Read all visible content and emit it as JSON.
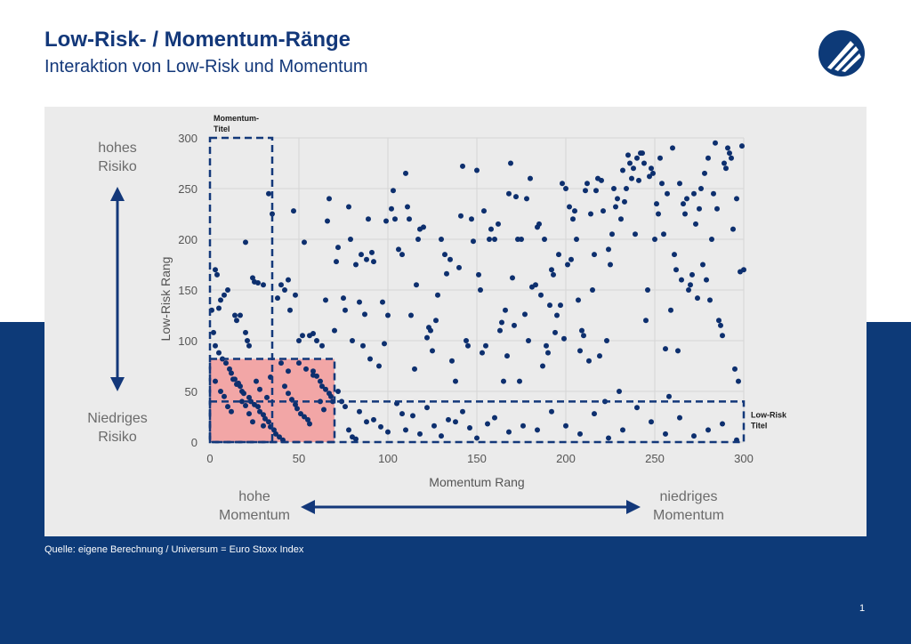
{
  "header": {
    "title": "Low-Risk- / Momentum-Ränge",
    "subtitle": "Interaktion von Low-Risk und Momentum"
  },
  "side_labels": {
    "high_risk": "hohes Risiko",
    "low_risk": "Niedriges Risiko",
    "high_momentum": "hohe Momentum",
    "low_momentum": "niedriges Momentum"
  },
  "footer": {
    "source": "Quelle: eigene Berechnung / Universum = Euro Stoxx Index",
    "page_number": "1"
  },
  "colors": {
    "brand": "#0d3a78",
    "points": "#0d2f6e",
    "highlight": "#f2a6a6",
    "panel": "#ebebeb"
  },
  "chart_data": {
    "type": "scatter",
    "xlabel": "Momentum Rang",
    "ylabel": "Low-Risk Rang",
    "xlim": [
      0,
      300
    ],
    "ylim": [
      0,
      300
    ],
    "xticks": [
      0,
      50,
      100,
      150,
      200,
      250,
      300
    ],
    "yticks": [
      0,
      50,
      100,
      150,
      200,
      250,
      300
    ],
    "grid": true,
    "regions": [
      {
        "label": "Momentum-Titel",
        "type": "dashed",
        "x": [
          0,
          35
        ],
        "y": [
          0,
          300
        ]
      },
      {
        "label": "Low-Risk Titel",
        "type": "dashed",
        "x": [
          0,
          300
        ],
        "y": [
          0,
          40
        ]
      },
      {
        "label": "",
        "type": "dashed",
        "x": [
          0,
          70
        ],
        "y": [
          0,
          82
        ]
      },
      {
        "label": "",
        "type": "filled",
        "x": [
          0,
          70
        ],
        "y": [
          0,
          82
        ]
      }
    ],
    "points": [
      [
        3,
        170
      ],
      [
        4,
        165
      ],
      [
        5,
        132
      ],
      [
        6,
        140
      ],
      [
        8,
        145
      ],
      [
        10,
        150
      ],
      [
        14,
        125
      ],
      [
        15,
        120
      ],
      [
        17,
        125
      ],
      [
        20,
        108
      ],
      [
        21,
        100
      ],
      [
        20,
        197
      ],
      [
        22,
        95
      ],
      [
        24,
        162
      ],
      [
        25,
        158
      ],
      [
        27,
        157
      ],
      [
        30,
        155
      ],
      [
        33,
        245
      ],
      [
        35,
        225
      ],
      [
        38,
        142
      ],
      [
        40,
        155
      ],
      [
        42,
        150
      ],
      [
        44,
        160
      ],
      [
        45,
        130
      ],
      [
        47,
        228
      ],
      [
        48,
        145
      ],
      [
        50,
        100
      ],
      [
        52,
        105
      ],
      [
        53,
        197
      ],
      [
        56,
        105
      ],
      [
        58,
        107
      ],
      [
        60,
        100
      ],
      [
        63,
        95
      ],
      [
        65,
        140
      ],
      [
        66,
        218
      ],
      [
        67,
        240
      ],
      [
        70,
        110
      ],
      [
        71,
        178
      ],
      [
        72,
        192
      ],
      [
        75,
        142
      ],
      [
        76,
        130
      ],
      [
        78,
        232
      ],
      [
        79,
        200
      ],
      [
        80,
        100
      ],
      [
        82,
        175
      ],
      [
        84,
        138
      ],
      [
        85,
        185
      ],
      [
        86,
        95
      ],
      [
        87,
        126
      ],
      [
        88,
        180
      ],
      [
        89,
        220
      ],
      [
        90,
        82
      ],
      [
        91,
        187
      ],
      [
        92,
        178
      ],
      [
        95,
        75
      ],
      [
        97,
        138
      ],
      [
        98,
        97
      ],
      [
        99,
        218
      ],
      [
        100,
        125
      ],
      [
        102,
        230
      ],
      [
        103,
        248
      ],
      [
        104,
        220
      ],
      [
        106,
        190
      ],
      [
        108,
        185
      ],
      [
        110,
        265
      ],
      [
        111,
        232
      ],
      [
        112,
        220
      ],
      [
        113,
        125
      ],
      [
        115,
        72
      ],
      [
        116,
        155
      ],
      [
        117,
        200
      ],
      [
        118,
        210
      ],
      [
        120,
        212
      ],
      [
        122,
        103
      ],
      [
        123,
        113
      ],
      [
        124,
        110
      ],
      [
        125,
        90
      ],
      [
        127,
        120
      ],
      [
        128,
        145
      ],
      [
        130,
        200
      ],
      [
        132,
        185
      ],
      [
        133,
        166
      ],
      [
        135,
        180
      ],
      [
        136,
        80
      ],
      [
        138,
        60
      ],
      [
        140,
        172
      ],
      [
        141,
        223
      ],
      [
        142,
        272
      ],
      [
        144,
        100
      ],
      [
        145,
        95
      ],
      [
        147,
        220
      ],
      [
        148,
        198
      ],
      [
        150,
        268
      ],
      [
        151,
        165
      ],
      [
        152,
        150
      ],
      [
        153,
        88
      ],
      [
        154,
        228
      ],
      [
        155,
        95
      ],
      [
        157,
        200
      ],
      [
        158,
        210
      ],
      [
        160,
        200
      ],
      [
        162,
        215
      ],
      [
        163,
        110
      ],
      [
        164,
        118
      ],
      [
        165,
        60
      ],
      [
        166,
        130
      ],
      [
        167,
        85
      ],
      [
        168,
        245
      ],
      [
        169,
        275
      ],
      [
        170,
        162
      ],
      [
        171,
        115
      ],
      [
        172,
        242
      ],
      [
        173,
        200
      ],
      [
        174,
        60
      ],
      [
        175,
        200
      ],
      [
        177,
        126
      ],
      [
        178,
        240
      ],
      [
        179,
        100
      ],
      [
        180,
        260
      ],
      [
        181,
        153
      ],
      [
        183,
        155
      ],
      [
        184,
        212
      ],
      [
        185,
        215
      ],
      [
        186,
        145
      ],
      [
        187,
        75
      ],
      [
        188,
        200
      ],
      [
        189,
        95
      ],
      [
        190,
        88
      ],
      [
        191,
        135
      ],
      [
        192,
        170
      ],
      [
        193,
        165
      ],
      [
        194,
        108
      ],
      [
        195,
        125
      ],
      [
        196,
        185
      ],
      [
        197,
        135
      ],
      [
        198,
        255
      ],
      [
        199,
        102
      ],
      [
        200,
        250
      ],
      [
        201,
        175
      ],
      [
        202,
        232
      ],
      [
        203,
        180
      ],
      [
        204,
        220
      ],
      [
        205,
        228
      ],
      [
        206,
        200
      ],
      [
        207,
        140
      ],
      [
        208,
        90
      ],
      [
        209,
        110
      ],
      [
        210,
        105
      ],
      [
        211,
        248
      ],
      [
        212,
        255
      ],
      [
        213,
        80
      ],
      [
        214,
        225
      ],
      [
        215,
        150
      ],
      [
        216,
        185
      ],
      [
        217,
        248
      ],
      [
        218,
        260
      ],
      [
        219,
        85
      ],
      [
        220,
        258
      ],
      [
        221,
        228
      ],
      [
        222,
        40
      ],
      [
        223,
        100
      ],
      [
        224,
        190
      ],
      [
        225,
        175
      ],
      [
        226,
        205
      ],
      [
        227,
        250
      ],
      [
        228,
        232
      ],
      [
        229,
        240
      ],
      [
        230,
        50
      ],
      [
        231,
        220
      ],
      [
        232,
        268
      ],
      [
        233,
        237
      ],
      [
        234,
        250
      ],
      [
        235,
        283
      ],
      [
        236,
        275
      ],
      [
        237,
        260
      ],
      [
        238,
        270
      ],
      [
        239,
        205
      ],
      [
        240,
        280
      ],
      [
        241,
        258
      ],
      [
        242,
        285
      ],
      [
        243,
        285
      ],
      [
        244,
        275
      ],
      [
        245,
        120
      ],
      [
        246,
        150
      ],
      [
        247,
        262
      ],
      [
        248,
        270
      ],
      [
        249,
        265
      ],
      [
        250,
        200
      ],
      [
        251,
        235
      ],
      [
        252,
        225
      ],
      [
        253,
        280
      ],
      [
        254,
        255
      ],
      [
        255,
        205
      ],
      [
        256,
        92
      ],
      [
        257,
        245
      ],
      [
        258,
        45
      ],
      [
        259,
        130
      ],
      [
        260,
        290
      ],
      [
        261,
        185
      ],
      [
        262,
        170
      ],
      [
        263,
        90
      ],
      [
        264,
        255
      ],
      [
        265,
        160
      ],
      [
        266,
        235
      ],
      [
        267,
        225
      ],
      [
        268,
        240
      ],
      [
        269,
        150
      ],
      [
        270,
        155
      ],
      [
        271,
        165
      ],
      [
        272,
        245
      ],
      [
        273,
        215
      ],
      [
        274,
        142
      ],
      [
        275,
        230
      ],
      [
        276,
        250
      ],
      [
        277,
        175
      ],
      [
        278,
        265
      ],
      [
        279,
        160
      ],
      [
        280,
        280
      ],
      [
        281,
        140
      ],
      [
        282,
        200
      ],
      [
        283,
        245
      ],
      [
        284,
        295
      ],
      [
        285,
        230
      ],
      [
        286,
        120
      ],
      [
        287,
        115
      ],
      [
        288,
        105
      ],
      [
        289,
        275
      ],
      [
        290,
        270
      ],
      [
        291,
        290
      ],
      [
        292,
        285
      ],
      [
        293,
        280
      ],
      [
        294,
        210
      ],
      [
        295,
        72
      ],
      [
        296,
        240
      ],
      [
        297,
        60
      ],
      [
        298,
        168
      ],
      [
        299,
        292
      ],
      [
        300,
        170
      ],
      [
        1,
        130
      ],
      [
        2,
        108
      ],
      [
        3,
        95
      ],
      [
        5,
        88
      ],
      [
        7,
        82
      ],
      [
        9,
        78
      ],
      [
        11,
        72
      ],
      [
        12,
        68
      ],
      [
        13,
        62
      ],
      [
        15,
        57
      ],
      [
        17,
        55
      ],
      [
        18,
        50
      ],
      [
        19,
        48
      ],
      [
        22,
        44
      ],
      [
        23,
        40
      ],
      [
        25,
        37
      ],
      [
        27,
        35
      ],
      [
        28,
        30
      ],
      [
        30,
        27
      ],
      [
        31,
        23
      ],
      [
        33,
        20
      ],
      [
        34,
        15
      ],
      [
        36,
        12
      ],
      [
        37,
        8
      ],
      [
        39,
        5
      ],
      [
        41,
        2
      ],
      [
        42,
        55
      ],
      [
        44,
        48
      ],
      [
        46,
        42
      ],
      [
        48,
        37
      ],
      [
        49,
        33
      ],
      [
        51,
        28
      ],
      [
        53,
        25
      ],
      [
        55,
        22
      ],
      [
        56,
        18
      ],
      [
        58,
        70
      ],
      [
        60,
        65
      ],
      [
        62,
        60
      ],
      [
        63,
        55
      ],
      [
        65,
        52
      ],
      [
        67,
        48
      ],
      [
        68,
        45
      ],
      [
        69,
        40
      ],
      [
        3,
        60
      ],
      [
        6,
        50
      ],
      [
        8,
        45
      ],
      [
        10,
        35
      ],
      [
        12,
        30
      ],
      [
        14,
        62
      ],
      [
        16,
        58
      ],
      [
        18,
        40
      ],
      [
        20,
        36
      ],
      [
        22,
        28
      ],
      [
        24,
        20
      ],
      [
        26,
        60
      ],
      [
        28,
        52
      ],
      [
        30,
        16
      ],
      [
        32,
        44
      ],
      [
        34,
        64
      ],
      [
        40,
        78
      ],
      [
        44,
        70
      ],
      [
        50,
        78
      ],
      [
        54,
        72
      ],
      [
        58,
        66
      ],
      [
        62,
        40
      ],
      [
        64,
        32
      ],
      [
        72,
        50
      ],
      [
        74,
        40
      ],
      [
        76,
        35
      ],
      [
        78,
        12
      ],
      [
        80,
        5
      ],
      [
        82,
        3
      ],
      [
        84,
        30
      ],
      [
        88,
        20
      ],
      [
        92,
        22
      ],
      [
        96,
        15
      ],
      [
        100,
        10
      ],
      [
        105,
        38
      ],
      [
        108,
        28
      ],
      [
        110,
        12
      ],
      [
        114,
        26
      ],
      [
        118,
        8
      ],
      [
        122,
        34
      ],
      [
        126,
        16
      ],
      [
        130,
        6
      ],
      [
        134,
        22
      ],
      [
        138,
        20
      ],
      [
        142,
        30
      ],
      [
        146,
        14
      ],
      [
        150,
        4
      ],
      [
        156,
        18
      ],
      [
        160,
        24
      ],
      [
        168,
        10
      ],
      [
        176,
        16
      ],
      [
        184,
        12
      ],
      [
        192,
        30
      ],
      [
        200,
        16
      ],
      [
        208,
        8
      ],
      [
        216,
        28
      ],
      [
        224,
        4
      ],
      [
        232,
        12
      ],
      [
        240,
        34
      ],
      [
        248,
        20
      ],
      [
        256,
        8
      ],
      [
        264,
        24
      ],
      [
        272,
        6
      ],
      [
        280,
        12
      ],
      [
        288,
        18
      ],
      [
        296,
        2
      ]
    ]
  }
}
